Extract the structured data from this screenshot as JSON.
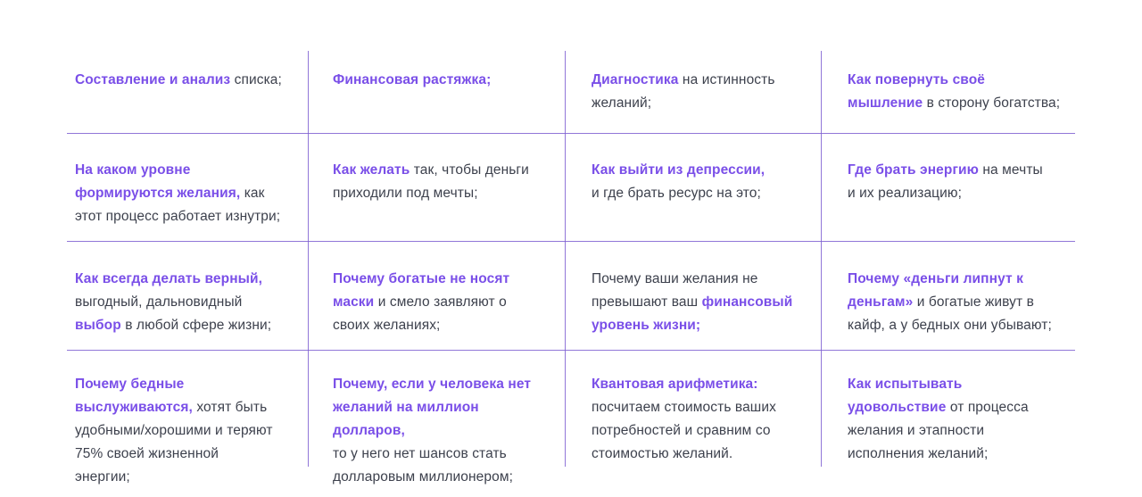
{
  "theme": {
    "accent_color": "#7A4FE8",
    "body_text_color": "#3D414D",
    "divider_color": "#7E5FD1",
    "background_color": "#FFFFFF"
  },
  "grid": {
    "columns": 4,
    "rows": 4,
    "cells": [
      {
        "segments": [
          {
            "t": "Составление и анализ",
            "a": true
          },
          {
            "t": " списка;",
            "a": false
          }
        ]
      },
      {
        "segments": [
          {
            "t": "Финансовая растяжка;",
            "a": true
          }
        ]
      },
      {
        "segments": [
          {
            "t": "Диагностика",
            "a": true
          },
          {
            "t": " на истинность\nжеланий;",
            "a": false
          }
        ]
      },
      {
        "segments": [
          {
            "t": "Как повернуть своё\nмышление",
            "a": true
          },
          {
            "t": " в сторону богатства;",
            "a": false
          }
        ]
      },
      {
        "segments": [
          {
            "t": "На каком уровне\nформируются желания,",
            "a": true
          },
          {
            "t": " как\nэтот процесс работает изнутри;",
            "a": false
          }
        ]
      },
      {
        "segments": [
          {
            "t": "Как желать",
            "a": true
          },
          {
            "t": " так, чтобы деньги\nприходили под мечты;",
            "a": false
          }
        ]
      },
      {
        "segments": [
          {
            "t": "Как выйти из депрессии,",
            "a": true
          },
          {
            "t": "\nи где брать ресурс на это;",
            "a": false
          }
        ]
      },
      {
        "segments": [
          {
            "t": "Где брать энергию",
            "a": true
          },
          {
            "t": " на мечты\nи их реализацию;",
            "a": false
          }
        ]
      },
      {
        "segments": [
          {
            "t": "Как всегда делать верный,",
            "a": true
          },
          {
            "t": "\nвыгодный, дальновидный\n",
            "a": false
          },
          {
            "t": "выбор",
            "a": true
          },
          {
            "t": " в любой сфере жизни;",
            "a": false
          }
        ]
      },
      {
        "segments": [
          {
            "t": "Почему богатые не носят\nмаски",
            "a": true
          },
          {
            "t": " и смело заявляют о\nсвоих желаниях;",
            "a": false
          }
        ]
      },
      {
        "segments": [
          {
            "t": "Почему ваши желания не\nпревышают ваш ",
            "a": false
          },
          {
            "t": "финансовый\nуровень жизни;",
            "a": true
          }
        ]
      },
      {
        "segments": [
          {
            "t": "Почему «деньги липнут к\nденьгам»",
            "a": true
          },
          {
            "t": " и богатые живут в\nкайф, а у бедных они убывают;",
            "a": false
          }
        ]
      },
      {
        "segments": [
          {
            "t": "Почему бедные\nвыслуживаются,",
            "a": true
          },
          {
            "t": " хотят быть\nудобными/хорошими и теряют\n75% своей жизненной\nэнергии;",
            "a": false
          }
        ]
      },
      {
        "segments": [
          {
            "t": "Почему, если у человека нет\nжеланий на миллион долларов,",
            "a": true
          },
          {
            "t": "\nто у него нет шансов стать\nдолларовым миллионером;",
            "a": false
          }
        ]
      },
      {
        "segments": [
          {
            "t": "Квантовая арифметика:",
            "a": true
          },
          {
            "t": "\nпосчитаем стоимость ваших\nпотребностей и сравним со\nстоимостью желаний.",
            "a": false
          }
        ]
      },
      {
        "segments": [
          {
            "t": "Как испытывать\nудовольствие",
            "a": true
          },
          {
            "t": " от процесса\nжелания и этапности\nисполнения желаний;",
            "a": false
          }
        ]
      }
    ]
  }
}
